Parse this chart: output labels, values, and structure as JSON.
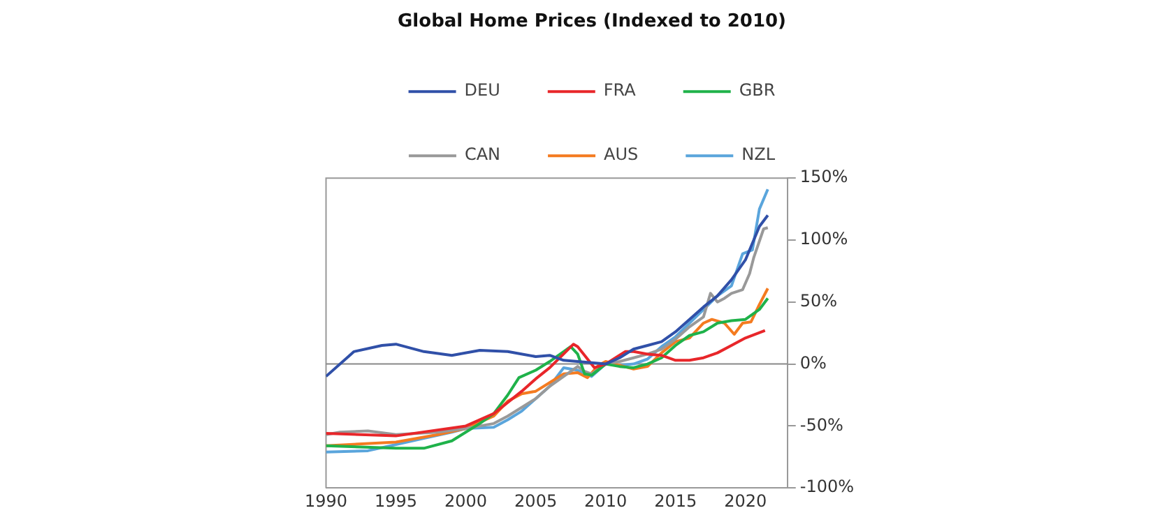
{
  "chart_data": {
    "type": "line",
    "title": "Global Home Prices (Indexed to 2010)",
    "legend": "top",
    "grid": false,
    "marker": "none",
    "line_style": "solid",
    "xlim": [
      1990,
      2023
    ],
    "xticks": [
      1990,
      1995,
      2000,
      2005,
      2010,
      2015,
      2020
    ],
    "ylim": [
      -100,
      150
    ],
    "yticks": [
      {
        "value": -100,
        "label": "-100%"
      },
      {
        "value": -50,
        "label": "-50%"
      },
      {
        "value": 0,
        "label": "0%"
      },
      {
        "value": 50,
        "label": "50%"
      },
      {
        "value": 100,
        "label": "100%"
      },
      {
        "value": 150,
        "label": "150%"
      }
    ],
    "ref_lines": [
      {
        "axis": "y",
        "value": 0,
        "color": "#888888"
      }
    ],
    "series": [
      {
        "name": "DEU",
        "color": "#3050a8",
        "x": [
          1990,
          1992,
          1994,
          1995,
          1997,
          1999,
          2001,
          2003,
          2005,
          2006,
          2007,
          2008,
          2010,
          2011,
          2012,
          2013,
          2014,
          2015,
          2016,
          2017,
          2018,
          2019,
          2020,
          2021,
          2021.6
        ],
        "values": [
          -10,
          10,
          15,
          16,
          10,
          7,
          11,
          10,
          6,
          7,
          3,
          2,
          0,
          5,
          12,
          15,
          18,
          26,
          36,
          46,
          55,
          68,
          84,
          111,
          120
        ]
      },
      {
        "name": "FRA",
        "color": "#e8262a",
        "x": [
          1990,
          1995,
          2000,
          2002,
          2004,
          2005,
          2006,
          2007.7,
          2008,
          2009.2,
          2010,
          2011.4,
          2012,
          2013,
          2014,
          2015,
          2016,
          2017,
          2018,
          2019,
          2020,
          2021.4
        ],
        "values": [
          -56,
          -58,
          -50,
          -40,
          -22,
          -12,
          -3,
          16,
          14,
          -3,
          0,
          10,
          10,
          8,
          7,
          3,
          3,
          5,
          9,
          15,
          21,
          27
        ]
      },
      {
        "name": "GBR",
        "color": "#1fb24a",
        "x": [
          1990,
          1995,
          1997,
          1999,
          2000,
          2001,
          2002,
          2003,
          2003.8,
          2005,
          2006,
          2007,
          2007.5,
          2008,
          2008.5,
          2009,
          2010,
          2011,
          2012,
          2013,
          2014,
          2015,
          2016,
          2017,
          2018,
          2019,
          2020,
          2021,
          2021.6
        ],
        "values": [
          -66,
          -68,
          -68,
          -62,
          -55,
          -48,
          -40,
          -25,
          -11,
          -5,
          2,
          10,
          14,
          8,
          -8,
          -9,
          0,
          -2,
          -3,
          0,
          5,
          15,
          23,
          26,
          33,
          35,
          36,
          44,
          53
        ]
      },
      {
        "name": "CAN",
        "color": "#999999",
        "x": [
          1990,
          1991,
          1993,
          1995,
          1998,
          2000,
          2002,
          2003,
          2004,
          2005,
          2006,
          2007,
          2008,
          2008.5,
          2009,
          2010,
          2011,
          2012,
          2013,
          2014,
          2015,
          2016,
          2017,
          2017.5,
          2018,
          2018.5,
          2019,
          2019.8,
          2020.3,
          2020.6,
          2021.3,
          2021.6
        ],
        "values": [
          -57,
          -55,
          -54,
          -57,
          -55,
          -52,
          -48,
          -42,
          -35,
          -28,
          -18,
          -10,
          -2,
          -6,
          -8,
          0,
          2,
          5,
          8,
          12,
          20,
          30,
          38,
          57,
          50,
          53,
          57,
          60,
          73,
          86,
          109,
          110
        ]
      },
      {
        "name": "AUS",
        "color": "#f47b20",
        "x": [
          1990,
          1995,
          1998,
          2000,
          2002,
          2003,
          2004,
          2005,
          2006,
          2007,
          2008,
          2008.7,
          2009.5,
          2010,
          2011,
          2012,
          2013,
          2014,
          2015,
          2016,
          2017,
          2017.6,
          2018.5,
          2019.2,
          2019.8,
          2020.4,
          2021,
          2021.6
        ],
        "values": [
          -66,
          -63,
          -57,
          -52,
          -42,
          -30,
          -24,
          -22,
          -15,
          -8,
          -7,
          -11,
          -1,
          2,
          -1,
          -4,
          -2,
          9,
          18,
          21,
          33,
          36,
          33,
          24,
          33,
          34,
          48,
          61
        ]
      },
      {
        "name": "NZL",
        "color": "#5aa5dc",
        "x": [
          1990,
          1993,
          1995,
          1997,
          1999,
          2000,
          2002,
          2003,
          2004,
          2005,
          2006,
          2007,
          2008,
          2009,
          2010,
          2011,
          2012,
          2013,
          2014,
          2015,
          2016,
          2017,
          2018,
          2019,
          2019.8,
          2020.5,
          2021,
          2021.6
        ],
        "values": [
          -71,
          -70,
          -65,
          -60,
          -55,
          -52,
          -51,
          -45,
          -38,
          -28,
          -18,
          -3,
          -5,
          -10,
          0,
          -1,
          0,
          4,
          14,
          22,
          33,
          44,
          55,
          63,
          89,
          92,
          125,
          141
        ]
      }
    ]
  }
}
